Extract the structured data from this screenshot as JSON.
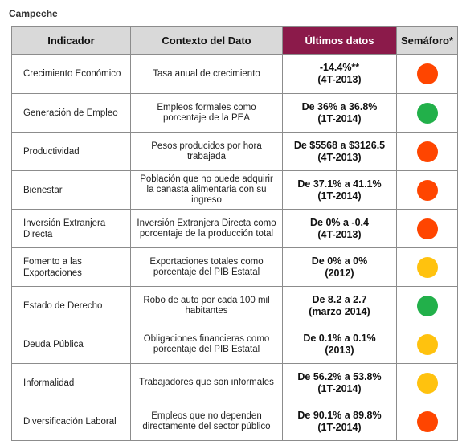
{
  "region": "Campeche",
  "headers": {
    "indicator": "Indicador",
    "context": "Contexto del Dato",
    "latest": "Últimos datos",
    "semaphore": "Semáforo*"
  },
  "colors": {
    "header_highlight": "#8b1a4a",
    "red": "#ff4500",
    "green": "#22b04a",
    "yellow": "#ffc20e"
  },
  "rows": [
    {
      "indicator": "Crecimiento Económico",
      "context": "Tasa  anual de crecimiento",
      "value": "-14.4%**",
      "period": "(4T-2013)",
      "status": "red"
    },
    {
      "indicator": "Generación de Empleo",
      "context": "Empleos formales como porcentaje de la PEA",
      "value": "De 36% a 36.8%",
      "period": "(1T-2014)",
      "status": "green"
    },
    {
      "indicator": "Productividad",
      "context": "Pesos producidos por hora trabajada",
      "value": "De $5568 a $3126.5",
      "period": "(4T-2013)",
      "status": "red"
    },
    {
      "indicator": "Bienestar",
      "context": "Población que no puede adquirir la canasta alimentaria con su ingreso",
      "value": "De 37.1% a 41.1%",
      "period": "(1T-2014)",
      "status": "red"
    },
    {
      "indicator": "Inversión Extranjera Directa",
      "context": "Inversión Extranjera Directa como porcentaje de la producción total",
      "value": "De 0% a -0.4",
      "period": "(4T-2013)",
      "status": "red"
    },
    {
      "indicator": "Fomento a las Exportaciones",
      "context": "Exportaciones totales como porcentaje del PIB Estatal",
      "value": "De 0% a 0%",
      "period": "(2012)",
      "status": "yellow"
    },
    {
      "indicator": "Estado de Derecho",
      "context": "Robo de auto por cada 100 mil habitantes",
      "value": "De 8.2 a 2.7",
      "period": "(marzo 2014)",
      "status": "green"
    },
    {
      "indicator": "Deuda Pública",
      "context": "Obligaciones financieras como porcentaje del PIB Estatal",
      "value": "De 0.1% a 0.1%",
      "period": "(2013)",
      "status": "yellow"
    },
    {
      "indicator": "Informalidad",
      "context": "Trabajadores que son informales",
      "value": "De 56.2% a 53.8%",
      "period": "(1T-2014)",
      "status": "yellow"
    },
    {
      "indicator": "Diversificación Laboral",
      "context": "Empleos que no dependen directamente del sector público",
      "value": "De 90.1% a 89.8%",
      "period": "(1T-2014)",
      "status": "red"
    }
  ]
}
